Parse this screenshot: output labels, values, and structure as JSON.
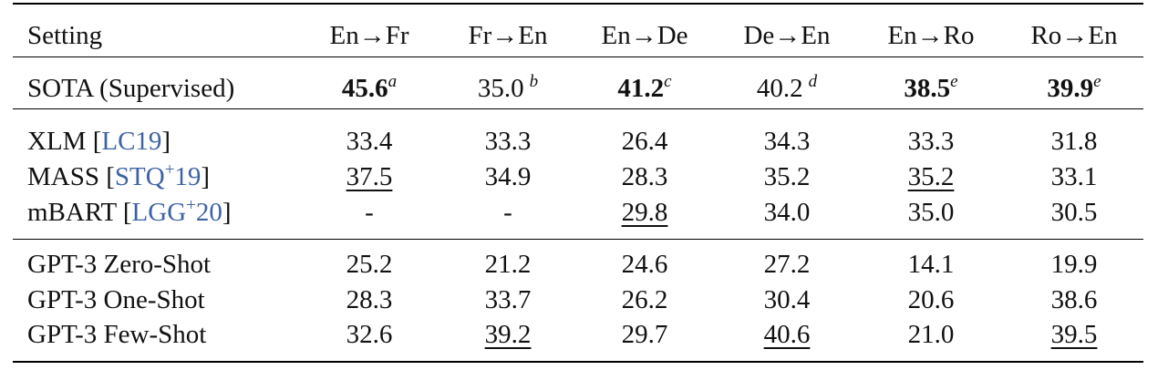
{
  "header": [
    "Setting",
    "En→Fr",
    "Fr→En",
    "En→De",
    "De→En",
    "En→Ro",
    "Ro→En"
  ],
  "sections": [
    {
      "rows": [
        {
          "label": [
            {
              "text": "SOTA (Supervised)"
            }
          ],
          "cells": [
            {
              "text": "45.6",
              "bold": true,
              "sup": "a"
            },
            {
              "text": "35.0",
              "sup": "b"
            },
            {
              "text": "41.2",
              "bold": true,
              "sup": "c"
            },
            {
              "text": "40.2",
              "sup": "d"
            },
            {
              "text": "38.5",
              "bold": true,
              "sup": "e"
            },
            {
              "text": "39.9",
              "bold": true,
              "sup": "e"
            }
          ]
        }
      ]
    },
    {
      "rows": [
        {
          "label": [
            {
              "text": "XLM ["
            },
            {
              "text": "LC19",
              "link": true
            },
            {
              "text": "]"
            }
          ],
          "cells": [
            {
              "text": "33.4"
            },
            {
              "text": "33.3"
            },
            {
              "text": "26.4"
            },
            {
              "text": "34.3"
            },
            {
              "text": "33.3"
            },
            {
              "text": "31.8"
            }
          ]
        },
        {
          "label": [
            {
              "text": "MASS ["
            },
            {
              "text": "STQ",
              "link": true
            },
            {
              "text": "+",
              "link": true,
              "sup": true
            },
            {
              "text": "19",
              "link": true
            },
            {
              "text": "]"
            }
          ],
          "cells": [
            {
              "text": "37.5",
              "underline": true
            },
            {
              "text": "34.9"
            },
            {
              "text": "28.3"
            },
            {
              "text": "35.2"
            },
            {
              "text": "35.2",
              "underline": true
            },
            {
              "text": "33.1"
            }
          ]
        },
        {
          "label": [
            {
              "text": "mBART ["
            },
            {
              "text": "LGG",
              "link": true
            },
            {
              "text": "+",
              "link": true,
              "sup": true
            },
            {
              "text": "20",
              "link": true
            },
            {
              "text": "]"
            }
          ],
          "cells": [
            {
              "text": "-"
            },
            {
              "text": "-"
            },
            {
              "text": "29.8",
              "underline": true
            },
            {
              "text": "34.0"
            },
            {
              "text": "35.0"
            },
            {
              "text": "30.5"
            }
          ]
        }
      ]
    },
    {
      "rows": [
        {
          "label": [
            {
              "text": "GPT-3 Zero-Shot"
            }
          ],
          "cells": [
            {
              "text": "25.2"
            },
            {
              "text": "21.2"
            },
            {
              "text": "24.6"
            },
            {
              "text": "27.2"
            },
            {
              "text": "14.1"
            },
            {
              "text": "19.9"
            }
          ]
        },
        {
          "label": [
            {
              "text": "GPT-3 One-Shot"
            }
          ],
          "cells": [
            {
              "text": "28.3"
            },
            {
              "text": "33.7"
            },
            {
              "text": "26.2"
            },
            {
              "text": "30.4"
            },
            {
              "text": "20.6"
            },
            {
              "text": "38.6"
            }
          ]
        },
        {
          "label": [
            {
              "text": "GPT-3 Few-Shot"
            }
          ],
          "cells": [
            {
              "text": "32.6"
            },
            {
              "text": "39.2",
              "underline": true
            },
            {
              "text": "29.7"
            },
            {
              "text": "40.6",
              "underline": true
            },
            {
              "text": "21.0"
            },
            {
              "text": "39.5",
              "underline": true
            }
          ]
        }
      ]
    }
  ]
}
